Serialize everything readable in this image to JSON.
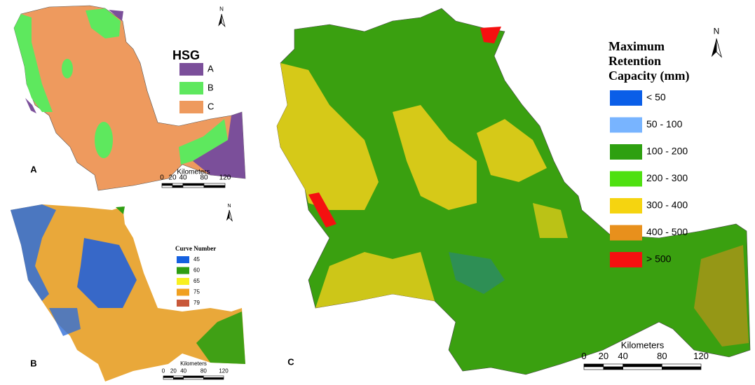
{
  "panels": [
    {
      "label": "A",
      "north": "N",
      "legend": {
        "title": "HSG",
        "items": [
          {
            "label": "A",
            "color": "#7b4f9a"
          },
          {
            "label": "B",
            "color": "#5ee85e"
          },
          {
            "label": "C",
            "color": "#ee9a5e"
          }
        ]
      },
      "scale": {
        "title": "Kilometers",
        "ticks": [
          0,
          20,
          40,
          80,
          120
        ]
      }
    },
    {
      "label": "B",
      "north": "N",
      "legend": {
        "title": "Curve Number",
        "items": [
          {
            "label": "45",
            "color": "#1560e0"
          },
          {
            "label": "60",
            "color": "#2e9e12"
          },
          {
            "label": "65",
            "color": "#f8f020"
          },
          {
            "label": "75",
            "color": "#f0a020"
          },
          {
            "label": "79",
            "color": "#c8583a"
          }
        ]
      },
      "scale": {
        "title": "Kilometers",
        "ticks": [
          0,
          20,
          40,
          80,
          120
        ]
      }
    },
    {
      "label": "C",
      "north": "N",
      "legend": {
        "title": "Maximum Retention Capacity (mm)",
        "items": [
          {
            "label": "< 50",
            "color": "#0a5ee8"
          },
          {
            "label": "50 - 100",
            "color": "#78b4ff"
          },
          {
            "label": "100 - 200",
            "color": "#2ea010"
          },
          {
            "label": "200 - 300",
            "color": "#4ee010"
          },
          {
            "label": "300 - 400",
            "color": "#f5d410"
          },
          {
            "label": "400 - 500",
            "color": "#e8901c"
          },
          {
            "label": "> 500",
            "color": "#f51010"
          }
        ]
      },
      "scale": {
        "title": "Kilometers",
        "ticks": [
          0,
          20,
          40,
          80,
          120
        ]
      }
    }
  ]
}
